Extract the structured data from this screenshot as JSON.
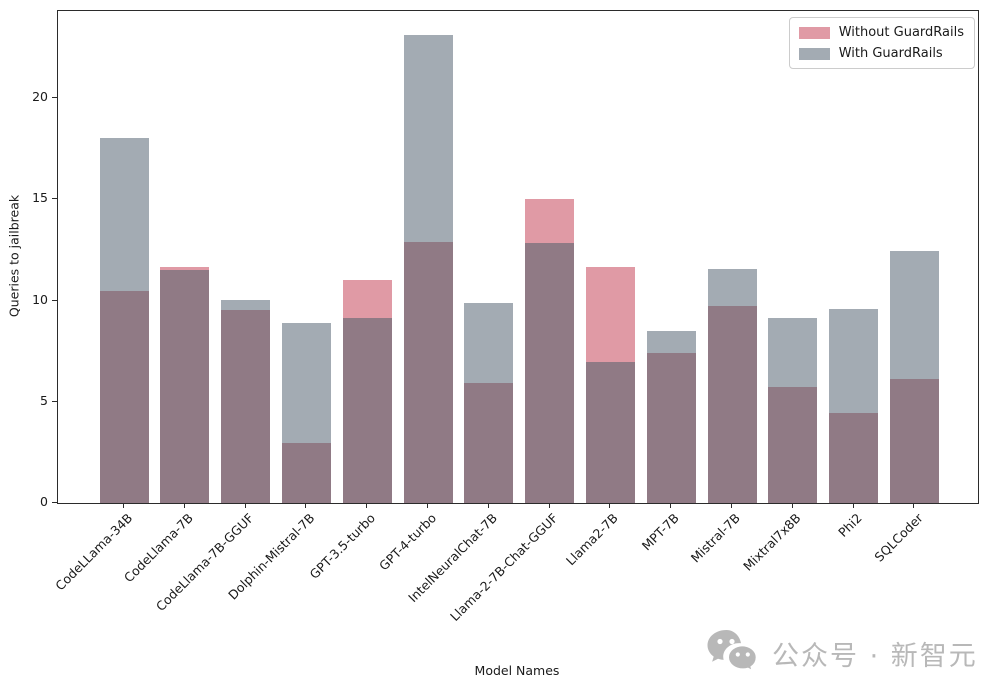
{
  "chart_data": {
    "type": "bar",
    "title": "",
    "xlabel": "Model Names",
    "ylabel": "Queries to jailbreak",
    "categories": [
      "CodeLLama-34B",
      "CodeLlama-7B",
      "CodeLlama-7B-GGUF",
      "Dolphin-Mistral-7B",
      "GPT-3.5-turbo",
      "GPT-4-turbo",
      "IntelNeuralChat-7B",
      "Llama-2-7B-Chat-GGUF",
      "Llama2-7B",
      "MPT-7B",
      "Mistral-7B",
      "Mixtral7x8B",
      "Phi2",
      "SQLCoder"
    ],
    "series": [
      {
        "name": "Without GuardRails",
        "color": "#e09aa5",
        "values": [
          10.45,
          11.65,
          9.55,
          2.95,
          11.0,
          12.9,
          5.95,
          15.0,
          11.65,
          7.4,
          9.75,
          5.75,
          4.45,
          6.1
        ]
      },
      {
        "name": "With GuardRails",
        "color": "#a3abb3",
        "values": [
          18.05,
          11.5,
          10.05,
          8.9,
          9.15,
          23.1,
          9.9,
          12.85,
          6.95,
          8.5,
          11.55,
          9.15,
          9.6,
          12.45
        ]
      }
    ],
    "overlap_color": "#907a85",
    "bar_style": "overlapping-translucent",
    "yticks": [
      0,
      5,
      10,
      15,
      20
    ],
    "ylim": [
      0,
      24.3
    ],
    "grid": false,
    "legend_position": "upper right"
  },
  "watermark": {
    "text": "公众号 · 新智元",
    "icon": "wechat-icon",
    "color": "#b5b5b5"
  }
}
